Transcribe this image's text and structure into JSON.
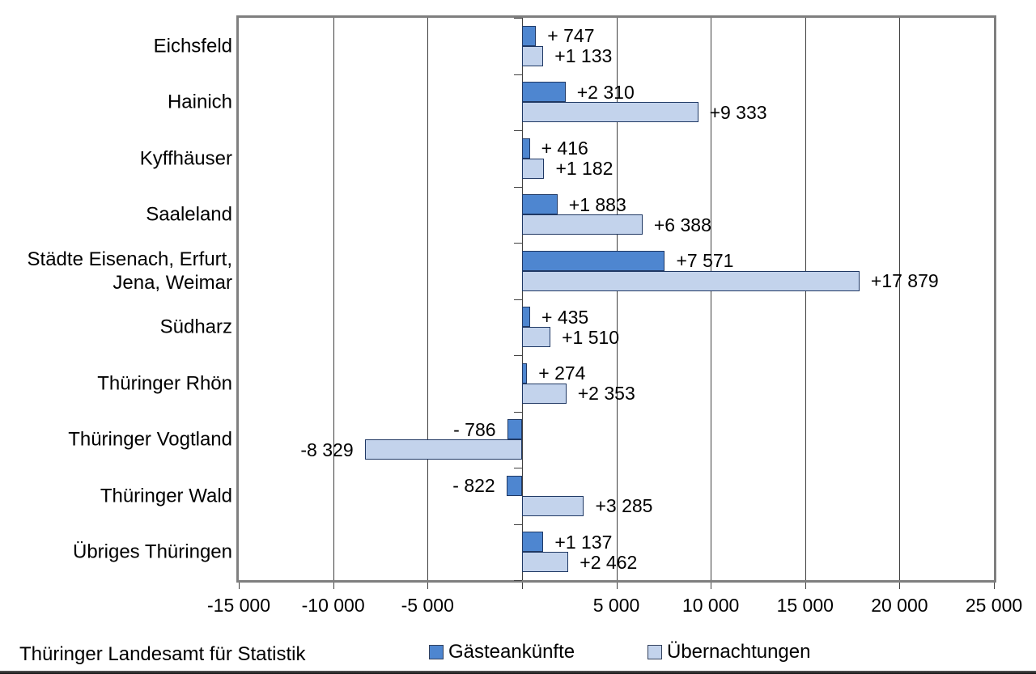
{
  "chart_data": {
    "type": "bar",
    "orientation": "horizontal",
    "title": "",
    "categories": [
      "Eichsfeld",
      "Hainich",
      "Kyffhäuser",
      "Saaleland",
      "Städte Eisenach, Erfurt,\nJena, Weimar",
      "Südharz",
      "Thüringer Rhön",
      "Thüringer Vogtland",
      "Thüringer Wald",
      "Übriges Thüringen"
    ],
    "series": [
      {
        "name": "Gästeankünfte",
        "color": "#4E86D0",
        "border_color": "#1F3864",
        "values": [
          747,
          2310,
          416,
          1883,
          7571,
          435,
          274,
          -786,
          -822,
          1137
        ],
        "labels": [
          "+ 747",
          "+2 310",
          "+ 416",
          "+1 883",
          "+7 571",
          "+ 435",
          "+ 274",
          "- 786",
          "- 822",
          "+1 137"
        ]
      },
      {
        "name": "Übernachtungen",
        "color": "#C3D3EC",
        "border_color": "#1F3864",
        "values": [
          1133,
          9333,
          1182,
          6388,
          17879,
          1510,
          2353,
          -8329,
          3285,
          2462
        ],
        "labels": [
          "+1 133",
          "+9 333",
          "+1 182",
          "+6 388",
          "+17 879",
          "+1 510",
          "+2 353",
          "-8 329",
          "+3 285",
          "+2 462"
        ]
      }
    ],
    "xlim": [
      -15000,
      25000
    ],
    "x_ticks": [
      {
        "value": -15000,
        "label": "-15 000"
      },
      {
        "value": -10000,
        "label": "-10 000"
      },
      {
        "value": -5000,
        "label": "-5 000"
      },
      {
        "value": 0,
        "label": ""
      },
      {
        "value": 5000,
        "label": "5 000"
      },
      {
        "value": 10000,
        "label": "10 000"
      },
      {
        "value": 15000,
        "label": "15 000"
      },
      {
        "value": 20000,
        "label": "20 000"
      },
      {
        "value": 25000,
        "label": "25 000"
      }
    ],
    "grid": true,
    "legend_position": "bottom"
  },
  "legend": {
    "items": [
      {
        "label": "Gästeankünfte",
        "color": "#4E86D0"
      },
      {
        "label": "Übernachtungen",
        "color": "#C3D3EC"
      }
    ]
  },
  "footer": {
    "source": "Thüringer Landesamt für Statistik"
  },
  "colors": {
    "grid": "#3f3f3f",
    "plot_border": "#7f7f7f",
    "background": "#ffffff"
  }
}
